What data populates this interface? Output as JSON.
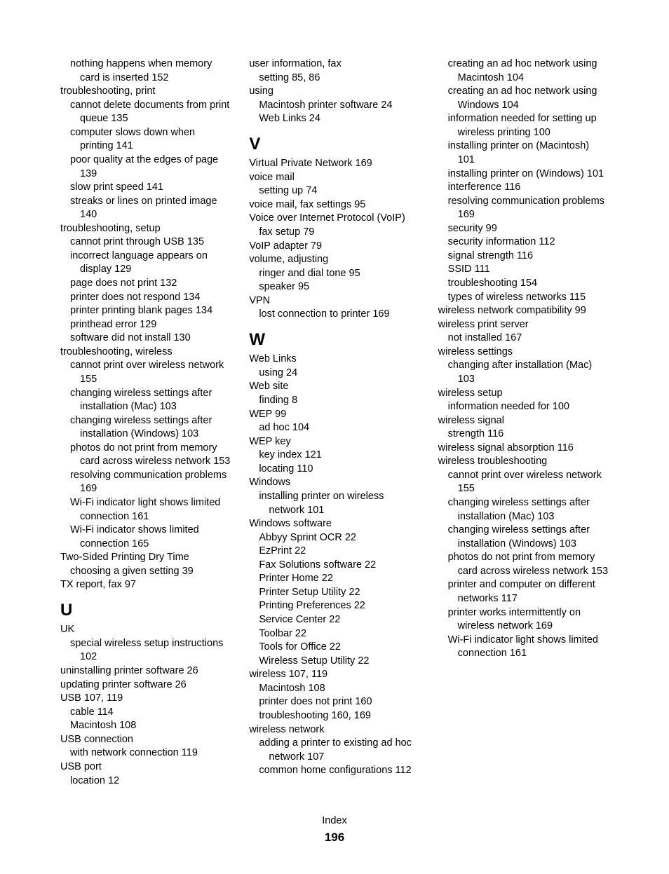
{
  "footer_label": "Index",
  "page_number": "196",
  "lines": [
    {
      "lvl": 1,
      "t": "nothing happens when memory card is inserted  152"
    },
    {
      "lvl": 0,
      "t": "troubleshooting, print"
    },
    {
      "lvl": 1,
      "t": "cannot delete documents from print queue  135"
    },
    {
      "lvl": 1,
      "t": "computer slows down when printing  141"
    },
    {
      "lvl": 1,
      "t": "poor quality at the edges of page  139"
    },
    {
      "lvl": 1,
      "t": "slow print speed  141"
    },
    {
      "lvl": 1,
      "t": "streaks or lines on printed image  140"
    },
    {
      "lvl": 0,
      "t": "troubleshooting, setup"
    },
    {
      "lvl": 1,
      "t": "cannot print through USB  135"
    },
    {
      "lvl": 1,
      "t": "incorrect language appears on display  129"
    },
    {
      "lvl": 1,
      "t": "page does not print  132"
    },
    {
      "lvl": 1,
      "t": "printer does not respond  134"
    },
    {
      "lvl": 1,
      "t": "printer printing blank pages  134"
    },
    {
      "lvl": 1,
      "t": "printhead error  129"
    },
    {
      "lvl": 1,
      "t": "software did not install  130"
    },
    {
      "lvl": 0,
      "t": "troubleshooting, wireless"
    },
    {
      "lvl": 1,
      "t": "cannot print over wireless network  155"
    },
    {
      "lvl": 1,
      "t": "changing wireless settings after installation (Mac)  103"
    },
    {
      "lvl": 1,
      "t": "changing wireless settings after installation (Windows)  103"
    },
    {
      "lvl": 1,
      "t": "photos do not print from memory card across wireless network  153"
    },
    {
      "lvl": 1,
      "t": "resolving communication problems  169"
    },
    {
      "lvl": 1,
      "t": "Wi-Fi indicator light shows limited connection  161"
    },
    {
      "lvl": 1,
      "t": "Wi-Fi indicator shows limited connection  165"
    },
    {
      "lvl": 0,
      "t": "Two-Sided Printing Dry Time"
    },
    {
      "lvl": 1,
      "t": "choosing a given setting  39"
    },
    {
      "lvl": 0,
      "t": "TX report, fax  97"
    },
    {
      "h": "U"
    },
    {
      "lvl": 0,
      "t": "UK"
    },
    {
      "lvl": 1,
      "t": "special wireless setup instructions  102"
    },
    {
      "lvl": 0,
      "t": "uninstalling printer software  26"
    },
    {
      "lvl": 0,
      "t": "updating printer software  26"
    },
    {
      "lvl": 0,
      "t": "USB  107, 119"
    },
    {
      "lvl": 1,
      "t": "cable  114"
    },
    {
      "lvl": 1,
      "t": "Macintosh  108"
    },
    {
      "lvl": 0,
      "t": "USB connection"
    },
    {
      "lvl": 1,
      "t": "with network connection  119"
    },
    {
      "lvl": 0,
      "t": "USB port"
    },
    {
      "lvl": 1,
      "t": "location  12"
    },
    {
      "lvl": 0,
      "t": "user information, fax"
    },
    {
      "lvl": 1,
      "t": "setting  85, 86"
    },
    {
      "lvl": 0,
      "t": "using"
    },
    {
      "lvl": 1,
      "t": "Macintosh printer software  24"
    },
    {
      "lvl": 1,
      "t": "Web Links  24"
    },
    {
      "h": "V"
    },
    {
      "lvl": 0,
      "t": "Virtual Private Network  169"
    },
    {
      "lvl": 0,
      "t": "voice mail"
    },
    {
      "lvl": 1,
      "t": "setting up  74"
    },
    {
      "lvl": 0,
      "t": "voice mail, fax settings  95"
    },
    {
      "lvl": 0,
      "t": "Voice over Internet Protocol (VoIP)"
    },
    {
      "lvl": 1,
      "t": "fax setup  79"
    },
    {
      "lvl": 0,
      "t": "VoIP adapter  79"
    },
    {
      "lvl": 0,
      "t": "volume, adjusting"
    },
    {
      "lvl": 1,
      "t": "ringer and dial tone  95"
    },
    {
      "lvl": 1,
      "t": "speaker  95"
    },
    {
      "lvl": 0,
      "t": "VPN"
    },
    {
      "lvl": 1,
      "t": "lost connection to printer  169"
    },
    {
      "h": "W"
    },
    {
      "lvl": 0,
      "t": "Web Links"
    },
    {
      "lvl": 1,
      "t": "using  24"
    },
    {
      "lvl": 0,
      "t": "Web site"
    },
    {
      "lvl": 1,
      "t": "finding  8"
    },
    {
      "lvl": 0,
      "t": "WEP  99"
    },
    {
      "lvl": 1,
      "t": "ad hoc  104"
    },
    {
      "lvl": 0,
      "t": "WEP key"
    },
    {
      "lvl": 1,
      "t": "key index  121"
    },
    {
      "lvl": 1,
      "t": "locating  110"
    },
    {
      "lvl": 0,
      "t": "Windows"
    },
    {
      "lvl": 1,
      "t": "installing printer on wireless network  101"
    },
    {
      "lvl": 0,
      "t": "Windows software"
    },
    {
      "lvl": 1,
      "t": "Abbyy Sprint OCR  22"
    },
    {
      "lvl": 1,
      "t": "EzPrint  22"
    },
    {
      "lvl": 1,
      "t": "Fax Solutions software  22"
    },
    {
      "lvl": 1,
      "t": "Printer Home  22"
    },
    {
      "lvl": 1,
      "t": "Printer Setup Utility  22"
    },
    {
      "lvl": 1,
      "t": "Printing Preferences  22"
    },
    {
      "lvl": 1,
      "t": "Service Center  22"
    },
    {
      "lvl": 1,
      "t": "Toolbar  22"
    },
    {
      "lvl": 1,
      "t": "Tools for Office  22"
    },
    {
      "lvl": 1,
      "t": "Wireless Setup Utility  22"
    },
    {
      "lvl": 0,
      "t": "wireless  107, 119"
    },
    {
      "lvl": 1,
      "t": "Macintosh  108"
    },
    {
      "lvl": 1,
      "t": "printer does not print  160"
    },
    {
      "lvl": 1,
      "t": "troubleshooting  160, 169"
    },
    {
      "lvl": 0,
      "t": "wireless network"
    },
    {
      "lvl": 1,
      "t": "adding a printer to existing ad hoc network  107"
    },
    {
      "lvl": 1,
      "t": "common home configurations  112"
    },
    {
      "lvl": 1,
      "t": "creating an ad hoc network using Macintosh  104"
    },
    {
      "lvl": 1,
      "t": "creating an ad hoc network using Windows  104"
    },
    {
      "lvl": 1,
      "t": "information needed for setting up wireless printing  100"
    },
    {
      "lvl": 1,
      "t": "installing printer on (Macintosh)  101"
    },
    {
      "lvl": 1,
      "t": "installing printer on (Windows)  101"
    },
    {
      "lvl": 1,
      "t": "interference  116"
    },
    {
      "lvl": 1,
      "t": "resolving communication problems  169"
    },
    {
      "lvl": 1,
      "t": "security  99"
    },
    {
      "lvl": 1,
      "t": "security information  112"
    },
    {
      "lvl": 1,
      "t": "signal strength  116"
    },
    {
      "lvl": 1,
      "t": "SSID  111"
    },
    {
      "lvl": 1,
      "t": "troubleshooting  154"
    },
    {
      "lvl": 1,
      "t": "types of wireless networks  115"
    },
    {
      "lvl": 0,
      "t": "wireless network compatibility  99"
    },
    {
      "lvl": 0,
      "t": "wireless print server"
    },
    {
      "lvl": 1,
      "t": "not installed  167"
    },
    {
      "lvl": 0,
      "t": "wireless settings"
    },
    {
      "lvl": 1,
      "t": "changing after installation (Mac)  103"
    },
    {
      "lvl": 0,
      "t": "wireless setup"
    },
    {
      "lvl": 1,
      "t": "information needed for  100"
    },
    {
      "lvl": 0,
      "t": "wireless signal"
    },
    {
      "lvl": 1,
      "t": "strength  116"
    },
    {
      "lvl": 0,
      "t": "wireless signal absorption  116"
    },
    {
      "lvl": 0,
      "t": "wireless troubleshooting"
    },
    {
      "lvl": 1,
      "t": "cannot print over wireless network  155"
    },
    {
      "lvl": 1,
      "t": "changing wireless settings after installation (Mac)  103"
    },
    {
      "lvl": 1,
      "t": "changing wireless settings after installation (Windows)  103"
    },
    {
      "lvl": 1,
      "t": "photos do not print from memory card across wireless network  153"
    },
    {
      "lvl": 1,
      "t": "printer and computer on different networks  117"
    },
    {
      "lvl": 1,
      "t": "printer works intermittently on wireless network  169"
    },
    {
      "lvl": 1,
      "t": "Wi-Fi indicator light shows limited connection  161"
    }
  ]
}
